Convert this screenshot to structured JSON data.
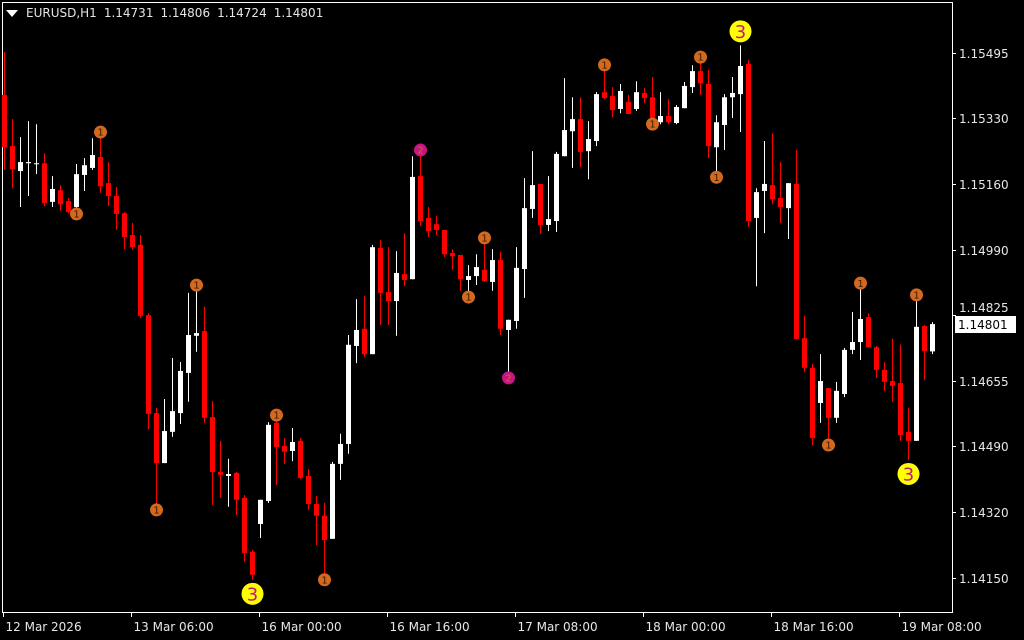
{
  "header": {
    "symbol_timeframe": "EURUSD,H1",
    "open": "1.14731",
    "high": "1.14806",
    "low": "1.14724",
    "close": "1.14801",
    "menu_icon": "triangle-down-icon"
  },
  "current_price_label": "1.14801",
  "colors": {
    "background": "#000000",
    "bull": "#ffffff",
    "bear": "#ff0000",
    "axis": "#ffffff",
    "marker_level_1": "#d2691e",
    "marker_level_2": "#c71585",
    "marker_level_3": "#ffff00",
    "marker_level_3_text": "#c71585"
  },
  "chart_data": {
    "type": "candlestick",
    "symbol": "EURUSD",
    "timeframe": "H1",
    "ylim": [
      1.14061,
      1.15626
    ],
    "grid": false,
    "y_ticks": [
      "1.15495",
      "1.15330",
      "1.15160",
      "1.14990",
      "1.14825",
      "1.14655",
      "1.14490",
      "1.14320",
      "1.14150"
    ],
    "x_labels": [
      {
        "bar": 0,
        "label": "12 Mar 2026"
      },
      {
        "bar": 16,
        "label": "13 Mar 06:00"
      },
      {
        "bar": 32,
        "label": "16 Mar 00:00"
      },
      {
        "bar": 48,
        "label": "16 Mar 16:00"
      },
      {
        "bar": 64,
        "label": "17 Mar 08:00"
      },
      {
        "bar": 80,
        "label": "18 Mar 00:00"
      },
      {
        "bar": 96,
        "label": "18 Mar 16:00"
      },
      {
        "bar": 112,
        "label": "19 Mar 08:00"
      }
    ],
    "ohlc_fields": [
      "open",
      "high",
      "low",
      "close"
    ],
    "ohlc": [
      [
        1.15388,
        1.15498,
        1.15196,
        1.15254
      ],
      [
        1.15257,
        1.15326,
        1.15149,
        1.15198
      ],
      [
        1.15193,
        1.1528,
        1.15101,
        1.15216
      ],
      [
        1.15213,
        1.15321,
        1.15129,
        1.15216
      ],
      [
        1.15211,
        1.15313,
        1.15185,
        1.15213
      ],
      [
        1.15213,
        1.15239,
        1.15103,
        1.15111
      ],
      [
        1.15114,
        1.1518,
        1.15101,
        1.15147
      ],
      [
        1.15144,
        1.15157,
        1.15091,
        1.15108
      ],
      [
        1.15116,
        1.15124,
        1.15085,
        1.15088
      ],
      [
        1.15101,
        1.15211,
        1.15096,
        1.15185
      ],
      [
        1.15183,
        1.15226,
        1.15142,
        1.15208
      ],
      [
        1.15201,
        1.15277,
        1.15196,
        1.15234
      ],
      [
        1.15229,
        1.1528,
        1.15137,
        1.15154
      ],
      [
        1.15162,
        1.15216,
        1.15103,
        1.15129
      ],
      [
        1.15129,
        1.15152,
        1.15042,
        1.15083
      ],
      [
        1.15085,
        1.15088,
        1.14993,
        1.15024
      ],
      [
        1.15029,
        1.1506,
        1.14991,
        1.14998
      ],
      [
        1.15004,
        1.15029,
        1.14817,
        1.14822
      ],
      [
        1.14824,
        1.14829,
        1.14532,
        1.14571
      ],
      [
        1.14573,
        1.14586,
        1.14338,
        1.14445
      ],
      [
        1.14445,
        1.14609,
        1.14445,
        1.14527
      ],
      [
        1.14525,
        1.14714,
        1.14512,
        1.14578
      ],
      [
        1.14573,
        1.14704,
        1.14545,
        1.14681
      ],
      [
        1.14676,
        1.14881,
        1.14602,
        1.14773
      ],
      [
        1.14771,
        1.14888,
        1.1473,
        1.14778
      ],
      [
        1.14783,
        1.14845,
        1.14548,
        1.14561
      ],
      [
        1.14563,
        1.14604,
        1.14338,
        1.14422
      ],
      [
        1.14422,
        1.14502,
        1.14356,
        1.14415
      ],
      [
        1.14412,
        1.14456,
        1.14333,
        1.14417
      ],
      [
        1.1442,
        1.14422,
        1.14312,
        1.14351
      ],
      [
        1.14356,
        1.14363,
        1.14192,
        1.14215
      ],
      [
        1.14218,
        1.14223,
        1.14146,
        1.14159
      ],
      [
        1.14289,
        1.14351,
        1.14253,
        1.14351
      ],
      [
        1.14348,
        1.1455,
        1.14343,
        1.14543
      ],
      [
        1.14548,
        1.14555,
        1.14389,
        1.14486
      ],
      [
        1.14489,
        1.14509,
        1.14443,
        1.14474
      ],
      [
        1.14476,
        1.14535,
        1.1445,
        1.14499
      ],
      [
        1.14502,
        1.14509,
        1.14404,
        1.14407
      ],
      [
        1.14412,
        1.1443,
        1.14325,
        1.1434
      ],
      [
        1.1434,
        1.14361,
        1.14235,
        1.1431
      ],
      [
        1.1431,
        1.14343,
        1.14159,
        1.14248
      ],
      [
        1.14251,
        1.14448,
        1.14251,
        1.14443
      ],
      [
        1.14443,
        1.1452,
        1.14402,
        1.14494
      ],
      [
        1.14494,
        1.14773,
        1.14469,
        1.14748
      ],
      [
        1.14745,
        1.14865,
        1.14701,
        1.14786
      ],
      [
        1.14789,
        1.14873,
        1.14717,
        1.14724
      ],
      [
        1.14724,
        1.15004,
        1.14724,
        1.14998
      ],
      [
        1.14996,
        1.15016,
        1.14799,
        1.14881
      ],
      [
        1.14883,
        1.14998,
        1.14799,
        1.1486
      ],
      [
        1.1486,
        1.14988,
        1.14771,
        1.14932
      ],
      [
        1.14929,
        1.15034,
        1.14898,
        1.14914
      ],
      [
        1.14916,
        1.15231,
        1.14916,
        1.15178
      ],
      [
        1.1518,
        1.15234,
        1.15052,
        1.15065
      ],
      [
        1.15073,
        1.15101,
        1.15024,
        1.15039
      ],
      [
        1.15057,
        1.15078,
        1.15029,
        1.15042
      ],
      [
        1.15042,
        1.15042,
        1.14973,
        1.1498
      ],
      [
        1.14983,
        1.14993,
        1.1494,
        1.14975
      ],
      [
        1.14978,
        1.14978,
        1.14886,
        1.14916
      ],
      [
        1.14914,
        1.14952,
        1.14883,
        1.14924
      ],
      [
        1.14924,
        1.1498,
        1.14901,
        1.14947
      ],
      [
        1.1494,
        1.15009,
        1.14909,
        1.14911
      ],
      [
        1.14909,
        1.14993,
        1.14886,
        1.14965
      ],
      [
        1.14965,
        1.14986,
        1.14773,
        1.14789
      ],
      [
        1.14786,
        1.14812,
        1.14676,
        1.14812
      ],
      [
        1.14809,
        1.14998,
        1.14789,
        1.14945
      ],
      [
        1.14942,
        1.15175,
        1.14868,
        1.15098
      ],
      [
        1.15096,
        1.15244,
        1.15073,
        1.15157
      ],
      [
        1.1516,
        1.1516,
        1.15032,
        1.15055
      ],
      [
        1.15055,
        1.1518,
        1.15039,
        1.1507
      ],
      [
        1.15065,
        1.15242,
        1.15037,
        1.15237
      ],
      [
        1.15231,
        1.15431,
        1.15231,
        1.15298
      ],
      [
        1.15295,
        1.15382,
        1.15201,
        1.15326
      ],
      [
        1.15326,
        1.15382,
        1.15203,
        1.15242
      ],
      [
        1.15244,
        1.15321,
        1.15172,
        1.15275
      ],
      [
        1.1527,
        1.15395,
        1.15257,
        1.1539
      ],
      [
        1.15395,
        1.15452,
        1.15377,
        1.1538
      ],
      [
        1.15385,
        1.15408,
        1.15331,
        1.15349
      ],
      [
        1.15352,
        1.15416,
        1.15341,
        1.15398
      ],
      [
        1.1537,
        1.15388,
        1.15339,
        1.15339
      ],
      [
        1.15352,
        1.15423,
        1.15347,
        1.15395
      ],
      [
        1.15393,
        1.15405,
        1.15367,
        1.1538
      ],
      [
        1.15382,
        1.15434,
        1.15326,
        1.15329
      ],
      [
        1.15318,
        1.15395,
        1.15313,
        1.15334
      ],
      [
        1.15334,
        1.15377,
        1.15313,
        1.15318
      ],
      [
        1.15316,
        1.15362,
        1.15313,
        1.15357
      ],
      [
        1.15354,
        1.15421,
        1.15354,
        1.15411
      ],
      [
        1.15408,
        1.15464,
        1.15393,
        1.15449
      ],
      [
        1.15449,
        1.15472,
        1.15388,
        1.15418
      ],
      [
        1.15416,
        1.15452,
        1.15226,
        1.15257
      ],
      [
        1.15254,
        1.15336,
        1.1519,
        1.15318
      ],
      [
        1.15311,
        1.1539,
        1.15247,
        1.15382
      ],
      [
        1.15382,
        1.15434,
        1.15329,
        1.15393
      ],
      [
        1.1539,
        1.15515,
        1.15293,
        1.15462
      ],
      [
        1.15467,
        1.15477,
        1.1505,
        1.15065
      ],
      [
        1.15073,
        1.15149,
        1.14898,
        1.15139
      ],
      [
        1.15142,
        1.1527,
        1.15034,
        1.1516
      ],
      [
        1.15157,
        1.1529,
        1.15108,
        1.15121
      ],
      [
        1.15124,
        1.15216,
        1.1506,
        1.15101
      ],
      [
        1.15098,
        1.15162,
        1.15019,
        1.15162
      ],
      [
        1.1516,
        1.15247,
        1.14763,
        1.14763
      ],
      [
        1.14765,
        1.14822,
        1.14678,
        1.14689
      ],
      [
        1.14689,
        1.14699,
        1.14491,
        1.14509
      ],
      [
        1.14599,
        1.14724,
        1.14548,
        1.14655
      ],
      [
        1.14637,
        1.14637,
        1.14504,
        1.14561
      ],
      [
        1.14561,
        1.14653,
        1.14548,
        1.1463
      ],
      [
        1.14622,
        1.1474,
        1.14614,
        1.14735
      ],
      [
        1.14735,
        1.14832,
        1.14724,
        1.14755
      ],
      [
        1.14755,
        1.14893,
        1.14709,
        1.14814
      ],
      [
        1.14819,
        1.14829,
        1.1474,
        1.14742
      ],
      [
        1.14742,
        1.14745,
        1.14663,
        1.14684
      ],
      [
        1.14684,
        1.14704,
        1.1463,
        1.14653
      ],
      [
        1.14655,
        1.14763,
        1.14602,
        1.14643
      ],
      [
        1.1465,
        1.14748,
        1.14502,
        1.14517
      ],
      [
        1.14525,
        1.14586,
        1.14453,
        1.14502
      ],
      [
        1.14502,
        1.14863,
        1.14502,
        1.14794
      ],
      [
        1.14796,
        1.14799,
        1.14658,
        1.14732
      ],
      [
        1.14731,
        1.14806,
        1.14724,
        1.14801
      ]
    ],
    "markers": [
      {
        "bar": 9,
        "side": "below",
        "level": "1"
      },
      {
        "bar": 12,
        "side": "above",
        "level": "1"
      },
      {
        "bar": 19,
        "side": "below",
        "level": "1"
      },
      {
        "bar": 24,
        "side": "above",
        "level": "1"
      },
      {
        "bar": 31,
        "side": "below",
        "level": "3"
      },
      {
        "bar": 34,
        "side": "above",
        "level": "1"
      },
      {
        "bar": 40,
        "side": "below",
        "level": "1"
      },
      {
        "bar": 52,
        "side": "above",
        "level": "2"
      },
      {
        "bar": 58,
        "side": "below",
        "level": "1"
      },
      {
        "bar": 60,
        "side": "above",
        "level": "1"
      },
      {
        "bar": 63,
        "side": "below",
        "level": "2"
      },
      {
        "bar": 75,
        "side": "above",
        "level": "1"
      },
      {
        "bar": 81,
        "side": "below",
        "level": "1"
      },
      {
        "bar": 87,
        "side": "above",
        "level": "1"
      },
      {
        "bar": 89,
        "side": "below",
        "level": "1"
      },
      {
        "bar": 92,
        "side": "above",
        "level": "3"
      },
      {
        "bar": 103,
        "side": "below",
        "level": "1"
      },
      {
        "bar": 107,
        "side": "above",
        "level": "1"
      },
      {
        "bar": 113,
        "side": "below",
        "level": "3"
      },
      {
        "bar": 114,
        "side": "above",
        "level": "1"
      }
    ]
  }
}
